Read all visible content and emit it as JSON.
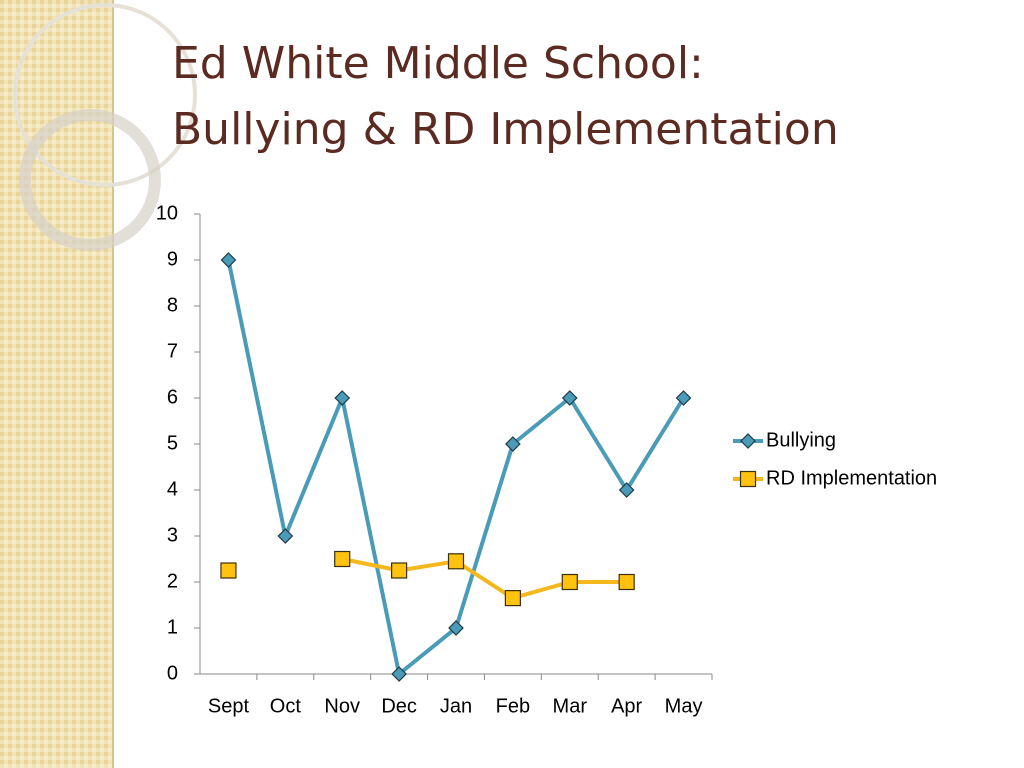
{
  "chart_data": {
    "type": "line",
    "title": [
      "Ed White Middle School:",
      "Bullying & RD Implementation"
    ],
    "categories": [
      "Sept",
      "Oct",
      "Nov",
      "Dec",
      "Jan",
      "Feb",
      "Mar",
      "Apr",
      "May"
    ],
    "series": [
      {
        "name": "Bullying",
        "color": "#4a9bb8",
        "marker": "diamond",
        "values": [
          9,
          3,
          6,
          0,
          1,
          5,
          6,
          4,
          6
        ]
      },
      {
        "name": "RD Implementation",
        "color": "#f5b81c",
        "marker": "square",
        "values": [
          2.25,
          null,
          2.5,
          2.25,
          2.45,
          1.65,
          2,
          2,
          null
        ]
      }
    ],
    "ylim": [
      0,
      10
    ],
    "yticks": [
      0,
      1,
      2,
      3,
      4,
      5,
      6,
      7,
      8,
      9,
      10
    ],
    "grid": false,
    "legend": "right"
  }
}
